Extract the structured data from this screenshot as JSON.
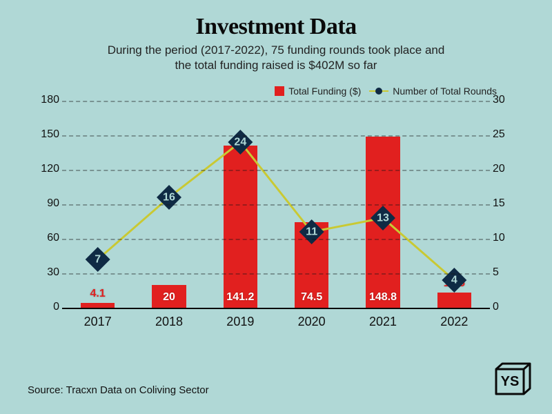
{
  "title": "Investment Data",
  "title_fontsize": 34,
  "subtitle_line1": "During the period (2017-2022), 75 funding rounds took place and",
  "subtitle_line2": "the total funding raised is $402M so far",
  "subtitle_fontsize": 17,
  "legend": {
    "bar_label": "Total Funding ($)",
    "line_label": "Number of Total Rounds"
  },
  "chart": {
    "type": "bar+line",
    "background_color": "#b0d8d6",
    "categories": [
      "2017",
      "2018",
      "2019",
      "2020",
      "2021",
      "2022"
    ],
    "bar_series": {
      "values": [
        4.1,
        20,
        141.2,
        74.5,
        148.8,
        13.5
      ],
      "labels": [
        "4.1",
        "20",
        "141.2",
        "74.5",
        "148.8",
        "13.5"
      ],
      "color": "#e1201f",
      "bar_width_pct": 8
    },
    "line_series": {
      "values": [
        7,
        16,
        24,
        11,
        13,
        4
      ],
      "labels": [
        "7",
        "16",
        "24",
        "11",
        "13",
        "4"
      ],
      "line_color": "#c9c933",
      "line_width": 3,
      "marker_color": "#0f2a44",
      "marker_radius": 18
    },
    "axis_left": {
      "min": 0,
      "max": 180,
      "step": 30
    },
    "axis_right": {
      "min": 0,
      "max": 30,
      "step": 5
    },
    "grid_color": "rgba(20,20,20,0.35)",
    "axis_fontsize": 16,
    "xlabel_fontsize": 18
  },
  "source": "Source: Tracxn Data on Coliving Sector",
  "logo_text": "YS",
  "colors": {
    "text": "#0a0a0a"
  }
}
